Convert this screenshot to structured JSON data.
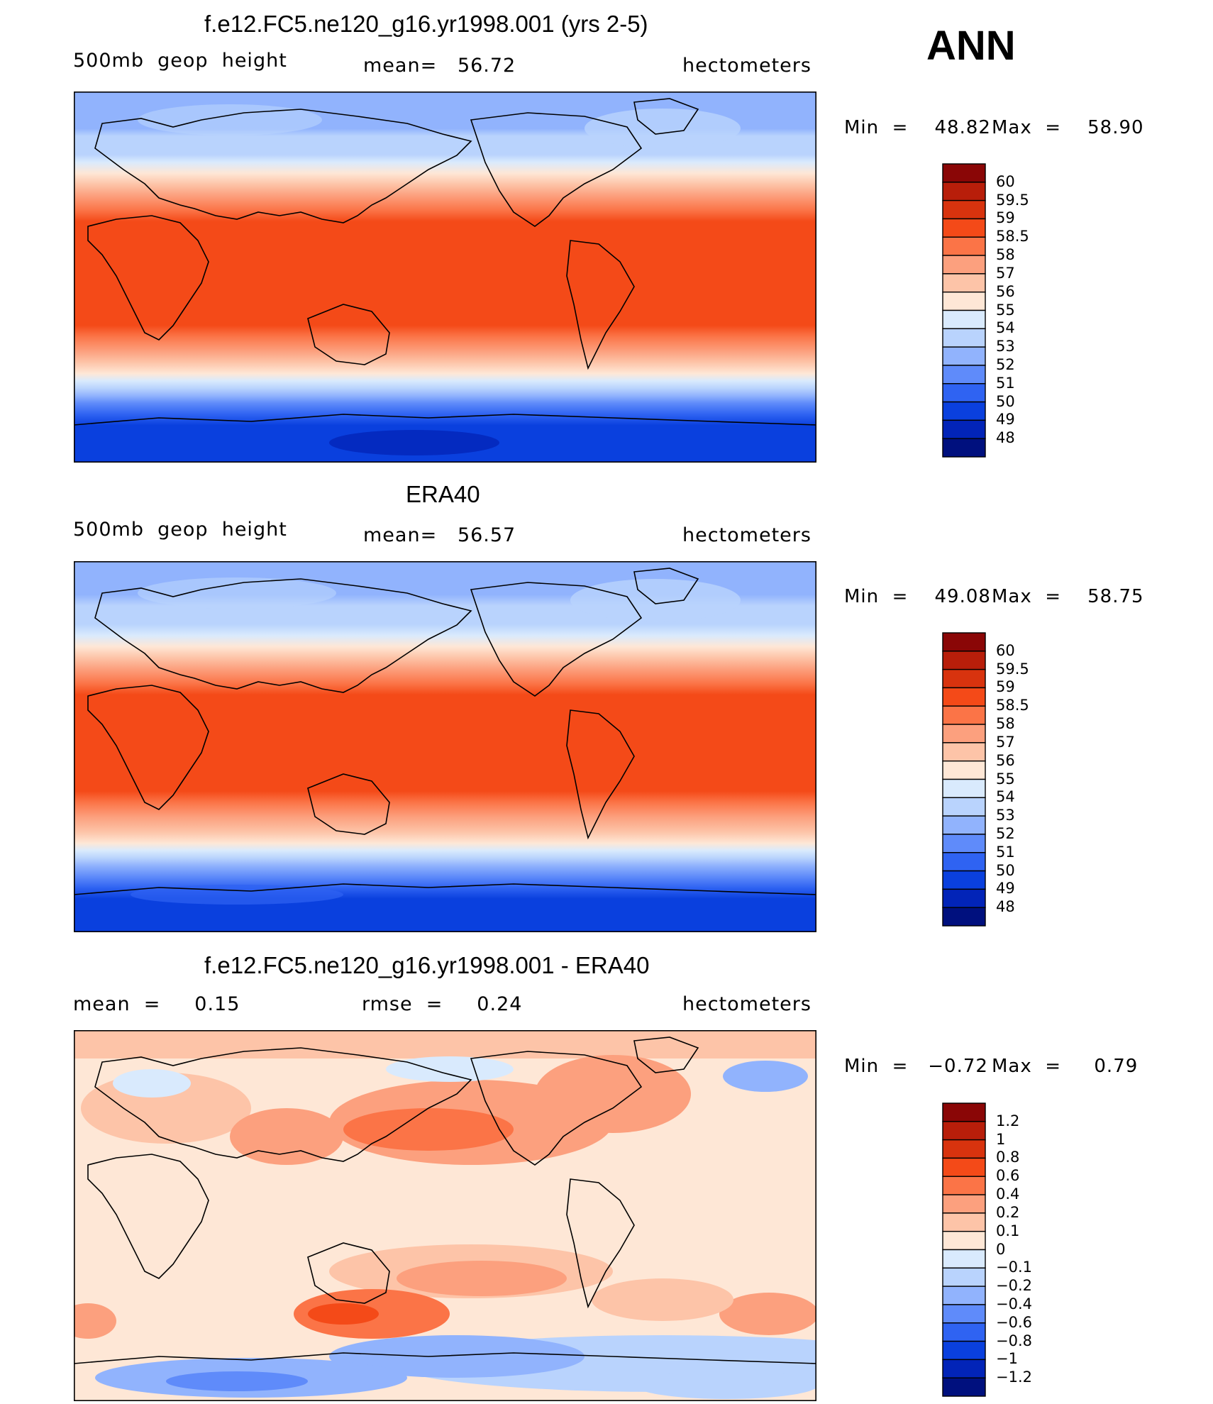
{
  "season": "ANN",
  "units_label": "hectometers",
  "panels": [
    {
      "id": "model",
      "title": "f.e12.FC5.ne120_g16.yr1998.001 (yrs 2-5)",
      "left_label": "500mb  geop  height",
      "center_label": "mean=   56.72",
      "right_label": "hectometers",
      "min_text": "Min  =    48.82",
      "max_text": "Max  =    58.90"
    },
    {
      "id": "obs",
      "title": "ERA40",
      "left_label": "500mb  geop  height",
      "center_label": "mean=   56.57",
      "right_label": "hectometers",
      "min_text": "Min  =    49.08",
      "max_text": "Max  =    58.75"
    },
    {
      "id": "diff",
      "title": "f.e12.FC5.ne120_g16.yr1998.001 - ERA40",
      "left_label": "mean  =     0.15",
      "center_label": "rmse  =     0.24",
      "right_label": "hectometers",
      "min_text": "Min  =   −0.72",
      "max_text": "Max  =     0.79"
    }
  ],
  "colorbar_abs": {
    "labels": [
      "60",
      "59.5",
      "59",
      "58.5",
      "58",
      "57",
      "56",
      "55",
      "54",
      "53",
      "52",
      "51",
      "50",
      "49",
      "48"
    ],
    "colors": [
      "#8a0606",
      "#b81e0a",
      "#d8330e",
      "#f44a18",
      "#fb7447",
      "#fca07e",
      "#fdc4a8",
      "#fee7d6",
      "#d9eafd",
      "#b9d3fd",
      "#91b3fd",
      "#5f8bfa",
      "#2f63f2",
      "#0a40de",
      "#0224b8",
      "#00107e"
    ]
  },
  "colorbar_diff": {
    "labels": [
      "1.2",
      "1",
      "0.8",
      "0.6",
      "0.4",
      "0.2",
      "0.1",
      "0",
      "−0.1",
      "−0.2",
      "−0.4",
      "−0.6",
      "−0.8",
      "−1",
      "−1.2"
    ],
    "colors": [
      "#8a0606",
      "#b81e0a",
      "#d8330e",
      "#f44a18",
      "#fb7447",
      "#fca07e",
      "#fdc4a8",
      "#fee7d6",
      "#d9eafd",
      "#b9d3fd",
      "#91b3fd",
      "#5f8bfa",
      "#2f63f2",
      "#0a40de",
      "#0224b8",
      "#00107e"
    ]
  },
  "chart_data": [
    {
      "type": "heatmap",
      "title": "f.e12.FC5.ne120_g16.yr1998.001 (yrs 2-5)",
      "variable": "500mb geop height",
      "units": "hectometers",
      "mean": 56.72,
      "min": 48.82,
      "max": 58.9,
      "levels": [
        48,
        49,
        50,
        51,
        52,
        53,
        54,
        55,
        56,
        57,
        58,
        58.5,
        59,
        59.5,
        60
      ],
      "zonal_profile": {
        "lat": [
          90,
          80,
          70,
          60,
          50,
          40,
          30,
          20,
          10,
          0,
          -10,
          -20,
          -30,
          -40,
          -50,
          -60,
          -70,
          -80,
          -90
        ],
        "value": [
          52.0,
          52.3,
          53.2,
          54.3,
          55.5,
          56.9,
          58.0,
          58.6,
          58.7,
          58.6,
          58.6,
          58.5,
          57.6,
          55.9,
          53.5,
          51.0,
          49.9,
          49.4,
          49.3
        ]
      }
    },
    {
      "type": "heatmap",
      "title": "ERA40",
      "variable": "500mb geop height",
      "units": "hectometers",
      "mean": 56.57,
      "min": 49.08,
      "max": 58.75,
      "levels": [
        48,
        49,
        50,
        51,
        52,
        53,
        54,
        55,
        56,
        57,
        58,
        58.5,
        59,
        59.5,
        60
      ],
      "zonal_profile": {
        "lat": [
          90,
          80,
          70,
          60,
          50,
          40,
          30,
          20,
          10,
          0,
          -10,
          -20,
          -30,
          -40,
          -50,
          -60,
          -70,
          -80,
          -90
        ],
        "value": [
          52.0,
          52.4,
          53.2,
          54.2,
          55.3,
          56.8,
          57.9,
          58.5,
          58.6,
          58.6,
          58.6,
          58.4,
          57.5,
          55.8,
          53.2,
          50.8,
          49.8,
          49.6,
          49.5
        ]
      }
    },
    {
      "type": "heatmap",
      "title": "f.e12.FC5.ne120_g16.yr1998.001 - ERA40",
      "units": "hectometers",
      "mean": 0.15,
      "rmse": 0.24,
      "min": -0.72,
      "max": 0.79,
      "levels": [
        -1.2,
        -1,
        -0.8,
        -0.6,
        -0.4,
        -0.2,
        -0.1,
        0,
        0.1,
        0.2,
        0.4,
        0.6,
        0.8,
        1,
        1.2
      ]
    }
  ]
}
